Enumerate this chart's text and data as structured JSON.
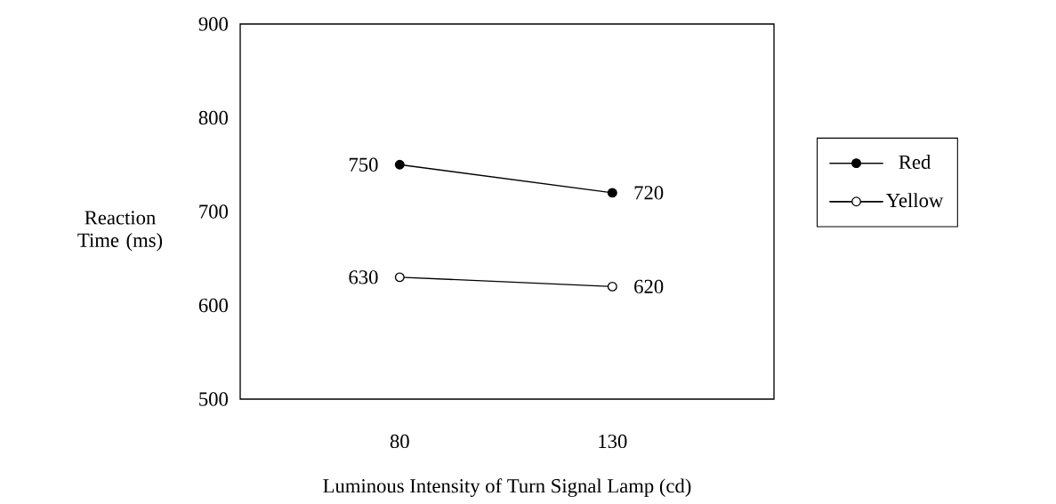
{
  "chart_data": {
    "type": "line",
    "xlabel": "Luminous Intensity of Turn Signal Lamp (cd)",
    "ylabel": "Reaction Time (ms)",
    "categories": [
      "80",
      "130"
    ],
    "series": [
      {
        "name": "Red",
        "color": "#000000",
        "values": [
          750,
          720
        ]
      },
      {
        "name": "Yellow",
        "color": "#ffffff",
        "values": [
          630,
          620
        ]
      }
    ],
    "ylim": [
      500,
      900
    ],
    "yticks": [
      500,
      600,
      700,
      800,
      900
    ],
    "marker": "circle",
    "line_style": "solid",
    "legend": "right",
    "data_labels": true
  }
}
